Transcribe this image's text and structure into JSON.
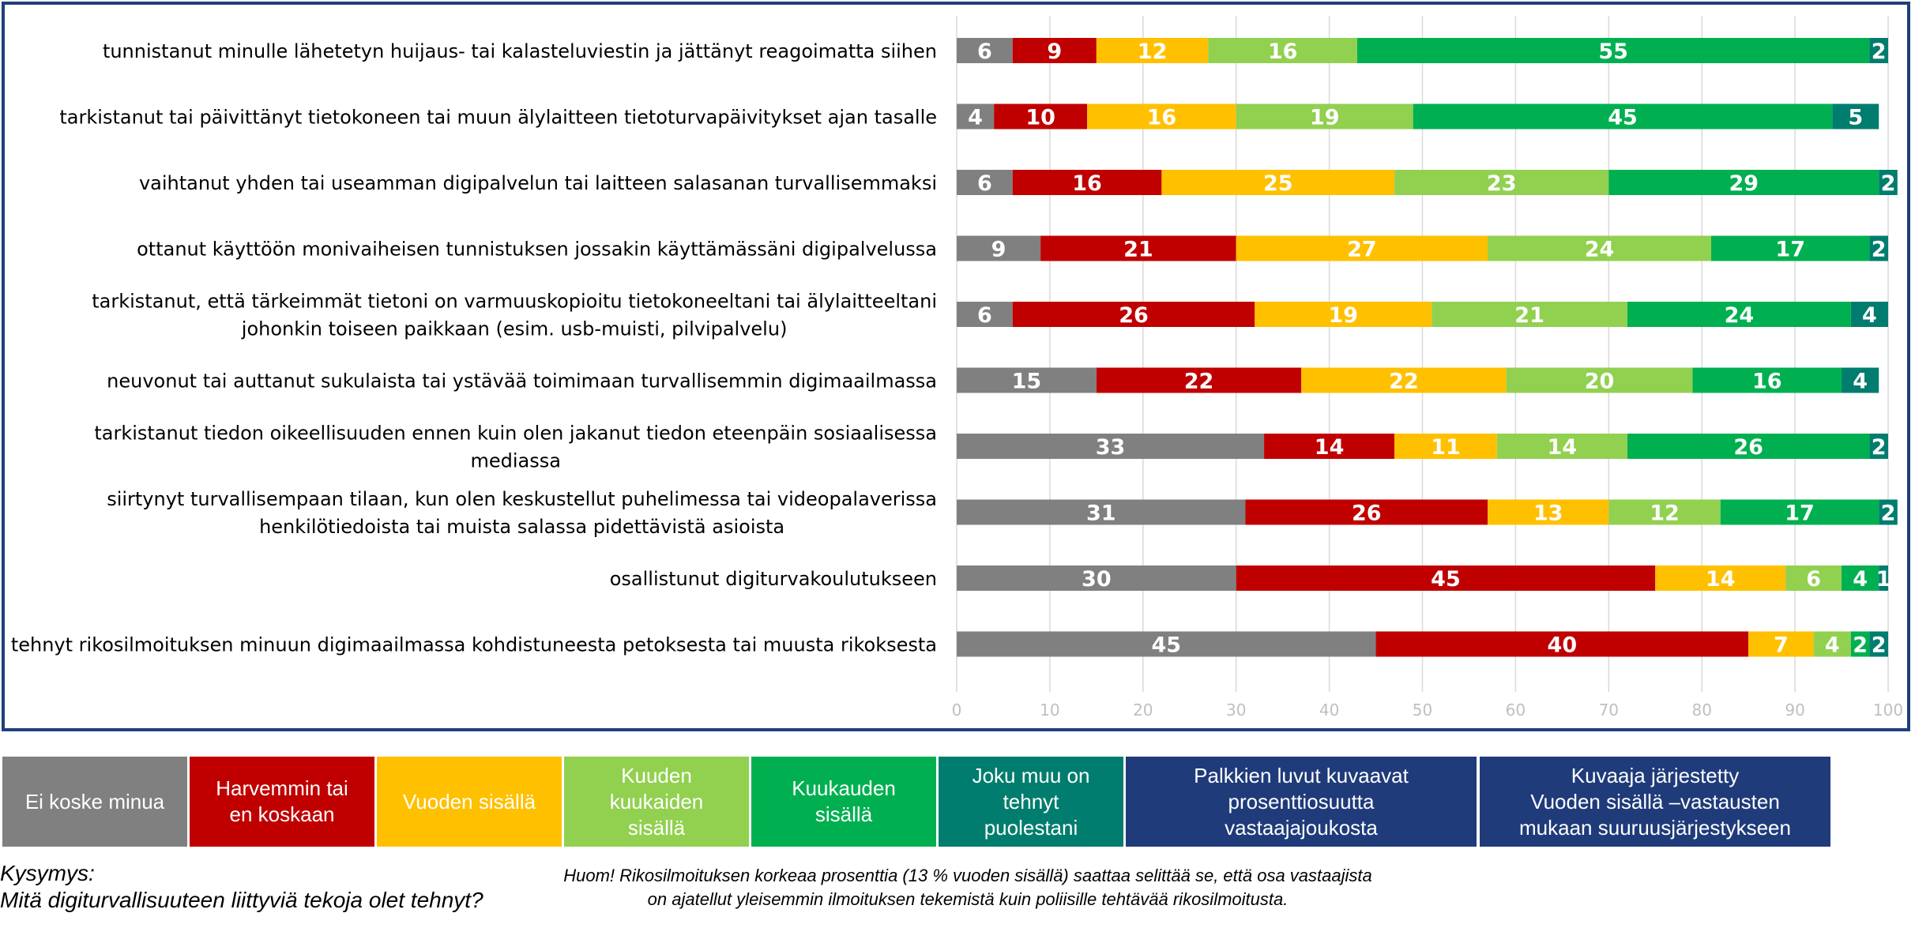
{
  "chart_data": {
    "type": "bar",
    "orientation": "horizontal",
    "stacked": true,
    "categories": [
      [
        "tunnistanut minulle lähetetyn huijaus- tai kalasteluviestin ja jättänyt reagoimatta siihen"
      ],
      [
        "tarkistanut tai päivittänyt tietokoneen tai muun älylaitteen tietoturvapäivitykset ajan tasalle"
      ],
      [
        "vaihtanut yhden tai useamman digipalvelun tai laitteen salasanan turvallisemmaksi"
      ],
      [
        "ottanut käyttöön monivaiheisen tunnistuksen jossakin käyttämässäni digipalvelussa"
      ],
      [
        "tarkistanut, että tärkeimmät tietoni on varmuuskopioitu tietokoneeltani tai älylaitteeltani",
        "johonkin toiseen paikkaan (esim. usb-muisti, pilvipalvelu)"
      ],
      [
        "neuvonut tai auttanut sukulaista tai ystävää toimimaan turvallisemmin digimaailmassa"
      ],
      [
        "tarkistanut tiedon oikeellisuuden ennen kuin olen jakanut tiedon eteenpäin sosiaalisessa",
        "mediassa"
      ],
      [
        "siirtynyt turvallisempaan tilaan, kun olen keskustellut puhelimessa tai videopalaverissa",
        "henkilötiedoista tai muista salassa pidettävistä asioista"
      ],
      [
        "osallistunut digiturvakoulutukseen"
      ],
      [
        "tehnyt rikosilmoituksen minuun digimaailmassa kohdistuneesta petoksesta tai muusta rikoksesta"
      ]
    ],
    "series": [
      {
        "name": "Ei koske minua",
        "color": "#808080",
        "values": [
          6,
          4,
          6,
          9,
          6,
          15,
          33,
          31,
          30,
          45
        ]
      },
      {
        "name": "Harvemmin tai en koskaan",
        "color": "#c00000",
        "values": [
          9,
          10,
          16,
          21,
          26,
          22,
          14,
          26,
          45,
          40
        ]
      },
      {
        "name": "Vuoden sisällä",
        "color": "#ffc000",
        "values": [
          12,
          16,
          25,
          27,
          19,
          22,
          11,
          13,
          14,
          7
        ]
      },
      {
        "name": "Kuuden kuukaiden sisällä",
        "color": "#92d050",
        "values": [
          16,
          19,
          23,
          24,
          21,
          20,
          14,
          12,
          6,
          4
        ]
      },
      {
        "name": "Kuukauden sisällä",
        "color": "#00b050",
        "values": [
          55,
          45,
          29,
          17,
          24,
          16,
          26,
          17,
          4,
          2
        ]
      },
      {
        "name": "Joku muu on tehnyt puolestani",
        "color": "#007d6e",
        "values": [
          2,
          5,
          2,
          2,
          4,
          4,
          2,
          2,
          1,
          2
        ]
      }
    ],
    "xlim": [
      0,
      100
    ],
    "xticks": [
      0,
      10,
      20,
      30,
      40,
      50,
      60,
      70,
      80,
      90,
      100
    ],
    "grid": true,
    "title": "",
    "xlabel": "",
    "ylabel": ""
  },
  "colors": {
    "frame": "#1f3f7a",
    "navy": "#1f3b7a",
    "grid": "#d9d9d9"
  },
  "legend": [
    {
      "label": "Ei koske minua",
      "color": "#808080"
    },
    {
      "label": "Harvemmin tai\nen koskaan",
      "color": "#c00000"
    },
    {
      "label": "Vuoden sisällä",
      "color": "#ffc000"
    },
    {
      "label": "Kuuden\nkuukaiden\nsisällä",
      "color": "#92d050"
    },
    {
      "label": "Kuukauden\nsisällä",
      "color": "#00b050"
    },
    {
      "label": "Joku muu on\ntehnyt\npuolestani",
      "color": "#007d6e"
    }
  ],
  "info_boxes": {
    "bar_values_note": "Palkkien luvut kuvaavat\nprosenttiosuutta\nvastaajajoukosta",
    "sort_note": "Kuvaaja järjestetty\nVuoden sisällä –vastausten\nmukaan suuruusjärjestykseen"
  },
  "question": {
    "label": "Kysymys:",
    "text": "Mitä digiturvallisuuteen liittyviä tekoja olet tehnyt?"
  },
  "footnote": "Huom! Rikosilmoituksen korkeaa prosenttia (13 % vuoden sisällä) saattaa selittää se, että osa vastaajista on ajatellut yleisemmin ilmoituksen tekemistä kuin poliisille tehtävää rikosilmoitusta."
}
